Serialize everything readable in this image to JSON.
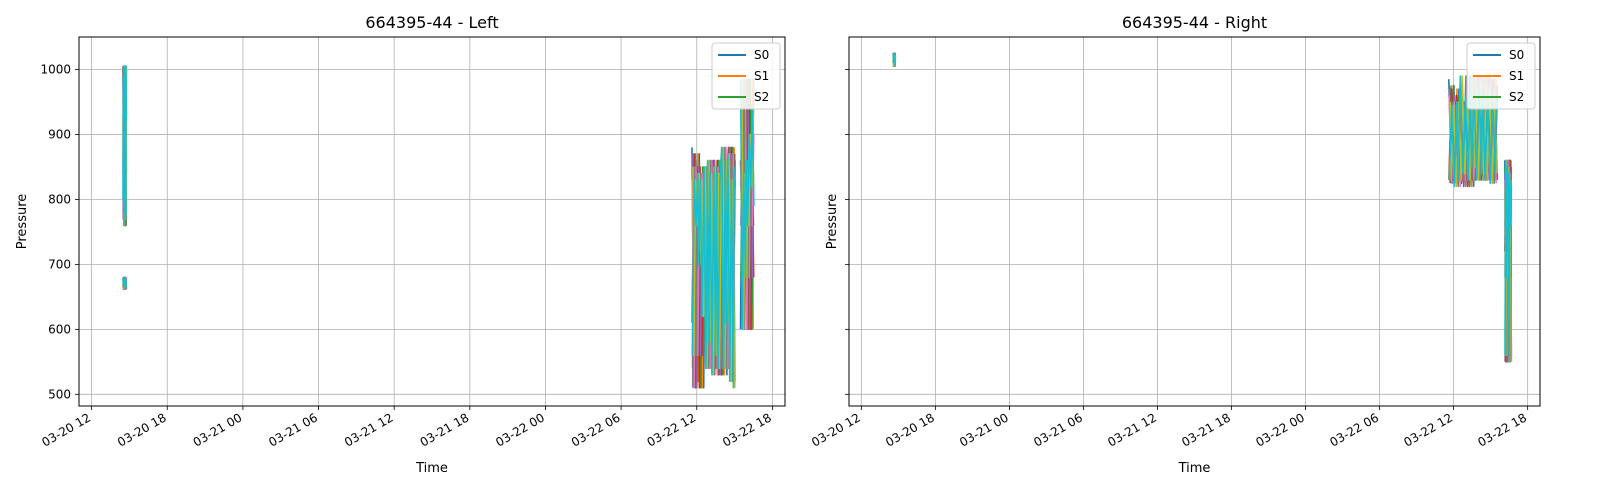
{
  "chart_data": [
    {
      "type": "line",
      "title": "664395-44 - Left",
      "xlabel": "Time",
      "ylabel": "Pressure",
      "xlim": [
        "2016-03-20 11:00",
        "2016-03-22 19:00"
      ],
      "ylim": [
        482,
        1050
      ],
      "x_tick_labels": [
        "03-20 12",
        "03-20 18",
        "03-21 00",
        "03-21 06",
        "03-21 12",
        "03-21 18",
        "03-22 00",
        "03-22 06",
        "03-22 12",
        "03-22 18"
      ],
      "y_ticks": [
        500,
        600,
        700,
        800,
        900,
        1000
      ],
      "grid": true,
      "legend_placement": "upper right",
      "legend": [
        "S0",
        "S1",
        "S2"
      ],
      "series_colors": [
        "#1f77b4",
        "#ff7f0e",
        "#2ca02c",
        "#d62728",
        "#9467bd",
        "#8c564b",
        "#e377c2",
        "#7f7f7f",
        "#bcbd22",
        "#17becf"
      ],
      "segments": [
        {
          "start": "2016-03-20 14:30",
          "end": "2016-03-20 14:45",
          "values": [
            1005,
            930,
            780,
            1000,
            840,
            960,
            770,
            1005,
            920,
            800,
            990,
            760
          ]
        },
        {
          "start": "2016-03-20 14:30",
          "end": "2016-03-20 14:45",
          "values": [
            678,
            662,
            676,
            665,
            680,
            668,
            675
          ]
        },
        {
          "start": "2016-03-22 11:40",
          "end": "2016-03-22 15:00",
          "values": [
            880,
            540,
            860,
            610,
            870,
            520,
            830,
            510,
            850,
            560,
            830,
            760,
            840,
            700,
            830,
            620,
            850,
            540,
            860,
            580,
            840,
            530,
            850,
            560,
            840,
            540,
            830
          ]
        },
        {
          "start": "2016-03-22 15:30",
          "end": "2016-03-22 16:30",
          "values": [
            600,
            840,
            680,
            860,
            760,
            900,
            820,
            940,
            790,
            985
          ]
        }
      ]
    },
    {
      "type": "line",
      "title": "664395-44 - Right",
      "xlabel": "Time",
      "ylabel": "Pressure",
      "xlim": [
        "2016-03-20 11:00",
        "2016-03-22 19:00"
      ],
      "ylim": [
        482,
        1050
      ],
      "x_tick_labels": [
        "03-20 12",
        "03-20 18",
        "03-21 00",
        "03-21 06",
        "03-21 12",
        "03-21 18",
        "03-22 00",
        "03-22 06",
        "03-22 12",
        "03-22 18"
      ],
      "y_ticks": [
        500,
        600,
        700,
        800,
        900,
        1000
      ],
      "grid": true,
      "legend_placement": "upper right",
      "legend": [
        "S0",
        "S1",
        "S2"
      ],
      "series_colors": [
        "#1f77b4",
        "#ff7f0e",
        "#2ca02c",
        "#d62728",
        "#9467bd",
        "#8c564b",
        "#e377c2",
        "#7f7f7f",
        "#bcbd22",
        "#17becf"
      ],
      "segments": [
        {
          "start": "2016-03-20 14:35",
          "end": "2016-03-20 14:45",
          "values": [
            1010,
            1022,
            1005,
            1025,
            1012,
            1020
          ]
        },
        {
          "start": "2016-03-22 11:40",
          "end": "2016-03-22 15:30",
          "values": [
            985,
            840,
            975,
            830,
            970,
            825,
            960,
            840,
            950,
            830,
            945,
            820,
            950,
            830,
            990,
            840,
            960,
            830,
            990,
            850,
            970,
            830
          ]
        },
        {
          "start": "2016-03-22 16:10",
          "end": "2016-03-22 16:40",
          "values": [
            860,
            680,
            850,
            720,
            840,
            550,
            830,
            760,
            820,
            560
          ]
        }
      ]
    }
  ]
}
